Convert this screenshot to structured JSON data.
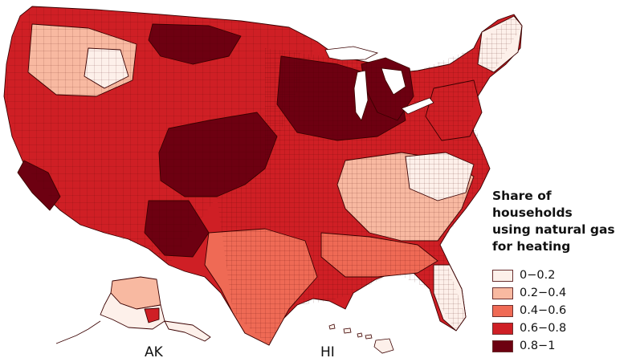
{
  "map": {
    "insets": {
      "alaska_label": "AK",
      "hawaii_label": "HI"
    },
    "palette": {
      "c0": "#fdf0ea",
      "c1": "#f8b9a1",
      "c2": "#ef6a55",
      "c3": "#cf1f25",
      "c4": "#6d0011",
      "border": "#3a0000"
    }
  },
  "legend": {
    "title_lines": [
      "Share of households",
      "using natural gas",
      "for heating"
    ],
    "items": [
      {
        "label": "0−0.2",
        "color": "#fdf0ea"
      },
      {
        "label": "0.2−0.4",
        "color": "#f8b9a1"
      },
      {
        "label": "0.4−0.6",
        "color": "#ef6a55"
      },
      {
        "label": "0.6−0.8",
        "color": "#cf1f25"
      },
      {
        "label": "0.8−1",
        "color": "#6d0011"
      }
    ]
  }
}
